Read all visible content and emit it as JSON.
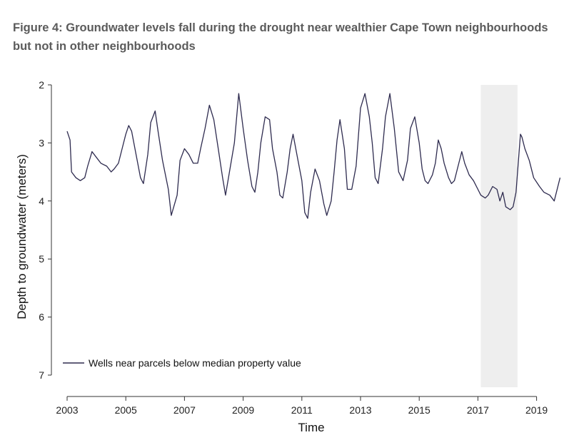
{
  "title": "Figure 4: Groundwater levels fall during the drought near wealthier Cape Town neighbourhoods but not in other neighbourhoods",
  "chart_data": {
    "type": "line",
    "xlabel": "Time",
    "ylabel": "Depth to groundwater (meters)",
    "xlim": [
      2002.8,
      2019.9
    ],
    "ylim": [
      2,
      7.2
    ],
    "y_inverted": true,
    "x_ticks": [
      "2003",
      "2005",
      "2007",
      "2009",
      "2011",
      "2013",
      "2015",
      "2017",
      "2019"
    ],
    "y_ticks": [
      "2",
      "3",
      "4",
      "5",
      "6",
      "7"
    ],
    "shaded_period": {
      "x_start": 2017.1,
      "x_end": 2018.35,
      "color": "#eeeeee"
    },
    "legend_position": "bottom-left",
    "series": [
      {
        "name": "Wells near parcels below median property value",
        "color": "#2e2b4f",
        "style": "solid",
        "x": [
          2003.0,
          2003.1,
          2003.15,
          2003.3,
          2003.45,
          2003.6,
          2003.7,
          2003.85,
          2004.0,
          2004.15,
          2004.35,
          2004.5,
          2004.6,
          2004.75,
          2004.85,
          2005.0,
          2005.1,
          2005.2,
          2005.35,
          2005.5,
          2005.6,
          2005.75,
          2005.85,
          2006.0,
          2006.1,
          2006.25,
          2006.45,
          2006.55,
          2006.75,
          2006.85,
          2007.0,
          2007.15,
          2007.3,
          2007.45,
          2007.55,
          2007.7,
          2007.85,
          2008.0,
          2008.15,
          2008.3,
          2008.4,
          2008.55,
          2008.7,
          2008.85,
          2009.0,
          2009.15,
          2009.3,
          2009.4,
          2009.5,
          2009.6,
          2009.75,
          2009.9,
          2010.0,
          2010.15,
          2010.25,
          2010.35,
          2010.5,
          2010.6,
          2010.7,
          2010.85,
          2011.0,
          2011.1,
          2011.2,
          2011.3,
          2011.45,
          2011.6,
          2011.75,
          2011.85,
          2012.0,
          2012.1,
          2012.2,
          2012.3,
          2012.45,
          2012.55,
          2012.7,
          2012.85,
          2013.0,
          2013.15,
          2013.3,
          2013.4,
          2013.5,
          2013.6,
          2013.75,
          2013.85,
          2014.0,
          2014.15,
          2014.3,
          2014.45,
          2014.6,
          2014.7,
          2014.85,
          2015.0,
          2015.1,
          2015.2,
          2015.3,
          2015.45,
          2015.55,
          2015.65,
          2015.75,
          2015.85,
          2016.0,
          2016.1,
          2016.2,
          2016.3,
          2016.45,
          2016.55,
          2016.7,
          2016.85,
          2017.0,
          2017.1,
          2017.25,
          2017.35,
          2017.5,
          2017.65,
          2017.75,
          2017.85,
          2017.95,
          2018.1,
          2018.2,
          2018.3,
          2018.45,
          2018.5,
          2018.6,
          2018.75,
          2018.9,
          2019.1,
          2019.25,
          2019.45,
          2019.6,
          2019.8
        ],
        "y": [
          2.8,
          2.95,
          3.5,
          3.6,
          3.65,
          3.6,
          3.4,
          3.15,
          3.25,
          3.35,
          3.4,
          3.5,
          3.45,
          3.35,
          3.15,
          2.85,
          2.7,
          2.8,
          3.2,
          3.6,
          3.7,
          3.2,
          2.65,
          2.45,
          2.8,
          3.3,
          3.8,
          4.25,
          3.9,
          3.3,
          3.1,
          3.2,
          3.35,
          3.35,
          3.1,
          2.75,
          2.35,
          2.6,
          3.1,
          3.6,
          3.9,
          3.45,
          3.0,
          2.15,
          2.75,
          3.3,
          3.75,
          3.85,
          3.5,
          3.0,
          2.55,
          2.6,
          3.1,
          3.5,
          3.9,
          3.95,
          3.5,
          3.1,
          2.85,
          3.25,
          3.65,
          4.2,
          4.3,
          3.85,
          3.45,
          3.65,
          4.05,
          4.25,
          4.0,
          3.5,
          2.95,
          2.6,
          3.1,
          3.8,
          3.8,
          3.4,
          2.4,
          2.15,
          2.55,
          3.0,
          3.6,
          3.7,
          3.1,
          2.55,
          2.15,
          2.75,
          3.5,
          3.65,
          3.3,
          2.75,
          2.55,
          3.0,
          3.45,
          3.65,
          3.7,
          3.55,
          3.35,
          2.95,
          3.1,
          3.35,
          3.6,
          3.7,
          3.65,
          3.45,
          3.15,
          3.35,
          3.55,
          3.65,
          3.8,
          3.9,
          3.95,
          3.9,
          3.75,
          3.8,
          4.0,
          3.85,
          4.1,
          4.15,
          4.1,
          3.85,
          2.85,
          2.9,
          3.1,
          3.3,
          3.6,
          3.75,
          3.85,
          3.9,
          4.0,
          3.6
        ],
        "_note": "removed"
      }
    ]
  }
}
